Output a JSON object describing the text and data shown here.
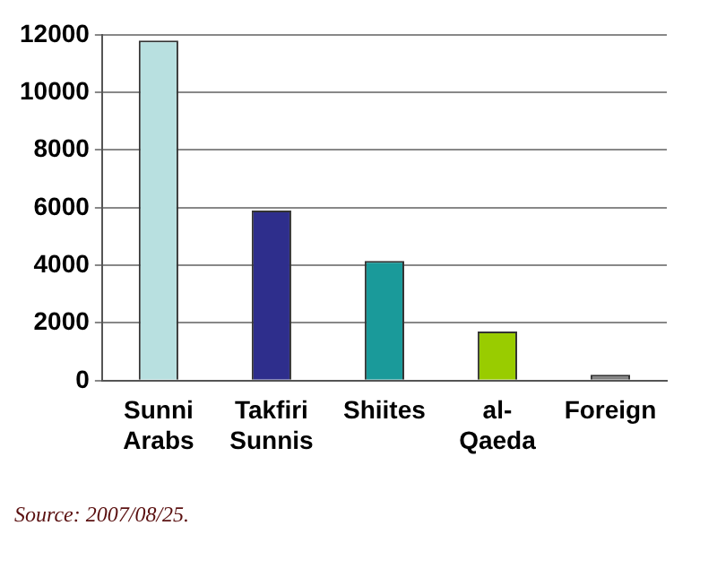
{
  "chart_data": {
    "type": "bar",
    "categories": [
      "Sunni Arabs",
      "Takfiri Sunnis",
      "Shiites",
      "al-Qaeda",
      "Foreign"
    ],
    "values": [
      11800,
      5900,
      4150,
      1700,
      200
    ],
    "colors": [
      "#b8e0e0",
      "#2e2e8c",
      "#1a9a9a",
      "#99cc00",
      "#808080"
    ],
    "ylim": [
      0,
      12000
    ],
    "yticks": [
      0,
      2000,
      4000,
      6000,
      8000,
      10000,
      12000
    ],
    "grid": "y",
    "annotations": [
      "Source: 2007/08/25."
    ]
  }
}
